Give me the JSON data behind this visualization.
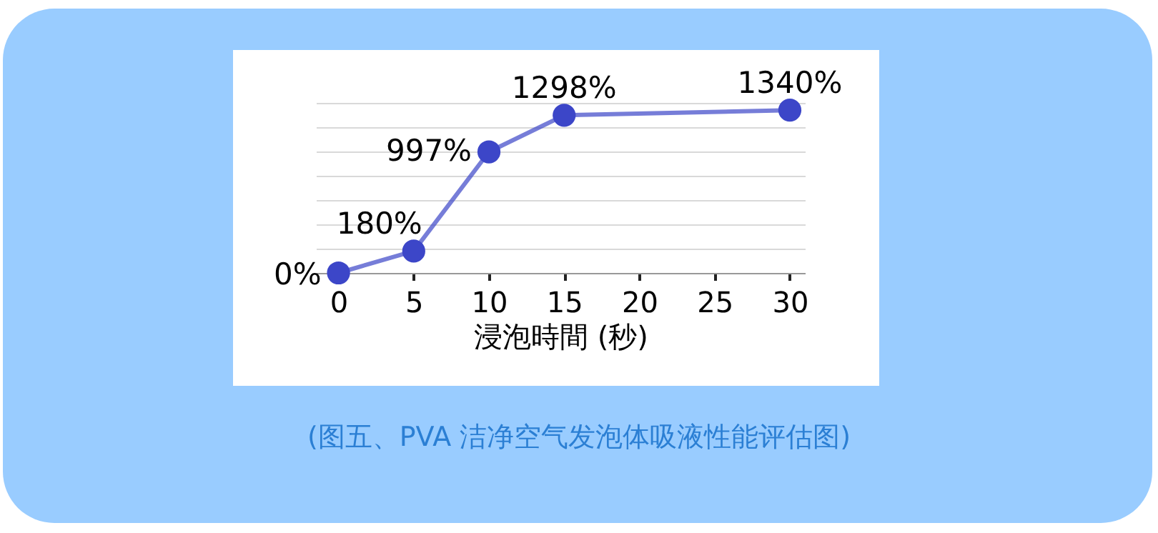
{
  "chart_data": {
    "type": "line",
    "xlabel": "浸泡時間 (秒)",
    "x": [
      0,
      5,
      10,
      15,
      30
    ],
    "series": [
      {
        "color": "#3c46c8",
        "values": [
          0,
          180,
          997,
          1298,
          1340
        ],
        "value_labels": [
          "0%",
          "180%",
          "997%",
          "1298%",
          "1340%"
        ]
      }
    ],
    "xlim": [
      -1.5,
      31
    ],
    "xticks": [
      0,
      5,
      10,
      15,
      20,
      25,
      30
    ],
    "grid": "y",
    "tick_labels": "x",
    "marker": "circle",
    "line_style": "solid",
    "annotations": [
      "(图五、PVA 洁净空气发泡体吸液性能评估图)"
    ]
  }
}
